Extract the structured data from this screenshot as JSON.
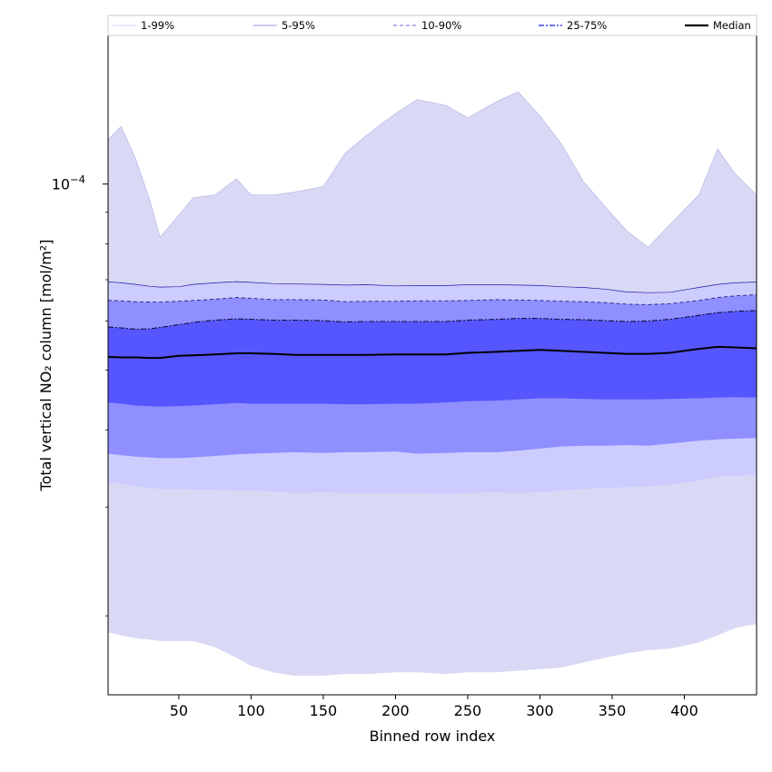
{
  "chart_data": {
    "type": "area",
    "title": "",
    "xlabel": "Binned row index",
    "ylabel": "Total vertical NO₂ column [mol/m²]",
    "xlim": [
      1,
      450
    ],
    "ylim": [
      1.49e-05,
      0.000174
    ],
    "yscale": "log",
    "grid": false,
    "legend_position": "top",
    "x_ticks": [
      50,
      100,
      150,
      200,
      250,
      300,
      350,
      400
    ],
    "y_tick_label": {
      "value": 0.0001,
      "base": "10",
      "exponent": "−4"
    },
    "x": [
      1,
      10,
      20,
      30,
      37,
      50,
      60,
      75,
      90,
      100,
      115,
      130,
      150,
      165,
      180,
      200,
      215,
      235,
      250,
      270,
      285,
      300,
      315,
      330,
      345,
      360,
      375,
      390,
      410,
      423,
      435,
      450
    ],
    "series": [
      {
        "name": "1-99%",
        "color": "#d9d9f5",
        "lower": [
          1.88e-05,
          1.86e-05,
          1.84e-05,
          1.83e-05,
          1.82e-05,
          1.82e-05,
          1.82e-05,
          1.78e-05,
          1.71e-05,
          1.66e-05,
          1.62e-05,
          1.6e-05,
          1.6e-05,
          1.61e-05,
          1.61e-05,
          1.62e-05,
          1.62e-05,
          1.61e-05,
          1.62e-05,
          1.62e-05,
          1.63e-05,
          1.64e-05,
          1.65e-05,
          1.68e-05,
          1.71e-05,
          1.74e-05,
          1.76e-05,
          1.77e-05,
          1.81e-05,
          1.86e-05,
          1.91e-05,
          1.94e-05
        ],
        "upper": [
          0.000118,
          0.000124,
          0.00011,
          9.4e-05,
          8.2e-05,
          8.9e-05,
          9.5e-05,
          9.6e-05,
          0.000102,
          9.6e-05,
          9.6e-05,
          9.7e-05,
          9.9e-05,
          0.000112,
          0.00012,
          0.00013,
          0.000137,
          0.000134,
          0.000128,
          0.000136,
          0.000141,
          0.000129,
          0.000116,
          0.000101,
          9.2e-05,
          8.4e-05,
          7.9e-05,
          8.6e-05,
          9.6e-05,
          0.000114,
          0.000104,
          9.6e-05
        ]
      },
      {
        "name": "5-95%",
        "color": "#ccccff",
        "lower": [
          3.29e-05,
          3.27e-05,
          3.24e-05,
          3.22e-05,
          3.21e-05,
          3.21e-05,
          3.2e-05,
          3.2e-05,
          3.19e-05,
          3.19e-05,
          3.18e-05,
          3.16e-05,
          3.17e-05,
          3.16e-05,
          3.16e-05,
          3.16e-05,
          3.16e-05,
          3.15e-05,
          3.16e-05,
          3.17e-05,
          3.16e-05,
          3.17e-05,
          3.19e-05,
          3.21e-05,
          3.22e-05,
          3.23e-05,
          3.24e-05,
          3.26e-05,
          3.31e-05,
          3.36e-05,
          3.37e-05,
          3.38e-05
        ],
        "upper": [
          6.95e-05,
          6.92e-05,
          6.88e-05,
          6.83e-05,
          6.81e-05,
          6.82e-05,
          6.88e-05,
          6.92e-05,
          6.95e-05,
          6.93e-05,
          6.9e-05,
          6.89e-05,
          6.88e-05,
          6.86e-05,
          6.87e-05,
          6.84e-05,
          6.85e-05,
          6.85e-05,
          6.87e-05,
          6.87e-05,
          6.86e-05,
          6.85e-05,
          6.82e-05,
          6.8e-05,
          6.76e-05,
          6.69e-05,
          6.67e-05,
          6.68e-05,
          6.8e-05,
          6.88e-05,
          6.92e-05,
          6.94e-05
        ]
      },
      {
        "name": "10-90%",
        "color": "#8f8fff",
        "lower": [
          3.66e-05,
          3.64e-05,
          3.62e-05,
          3.61e-05,
          3.6e-05,
          3.6e-05,
          3.61e-05,
          3.63e-05,
          3.65e-05,
          3.66e-05,
          3.67e-05,
          3.68e-05,
          3.67e-05,
          3.68e-05,
          3.68e-05,
          3.69e-05,
          3.66e-05,
          3.67e-05,
          3.68e-05,
          3.68e-05,
          3.7e-05,
          3.73e-05,
          3.76e-05,
          3.77e-05,
          3.77e-05,
          3.78e-05,
          3.77e-05,
          3.8e-05,
          3.84e-05,
          3.86e-05,
          3.87e-05,
          3.88e-05
        ],
        "upper": [
          6.48e-05,
          6.47e-05,
          6.45e-05,
          6.44e-05,
          6.44e-05,
          6.46e-05,
          6.48e-05,
          6.51e-05,
          6.55e-05,
          6.53e-05,
          6.5e-05,
          6.5e-05,
          6.49e-05,
          6.45e-05,
          6.46e-05,
          6.46e-05,
          6.47e-05,
          6.47e-05,
          6.48e-05,
          6.5e-05,
          6.49e-05,
          6.48e-05,
          6.46e-05,
          6.45e-05,
          6.43e-05,
          6.39e-05,
          6.38e-05,
          6.4e-05,
          6.48e-05,
          6.55e-05,
          6.59e-05,
          6.62e-05
        ]
      },
      {
        "name": "25-75%",
        "color": "#5656ff",
        "lower": [
          4.43e-05,
          4.41e-05,
          4.38e-05,
          4.37e-05,
          4.36e-05,
          4.37e-05,
          4.38e-05,
          4.4e-05,
          4.42e-05,
          4.41e-05,
          4.41e-05,
          4.41e-05,
          4.41e-05,
          4.4e-05,
          4.4e-05,
          4.41e-05,
          4.41e-05,
          4.43e-05,
          4.45e-05,
          4.46e-05,
          4.48e-05,
          4.5e-05,
          4.5e-05,
          4.49e-05,
          4.48e-05,
          4.48e-05,
          4.48e-05,
          4.49e-05,
          4.5e-05,
          4.51e-05,
          4.52e-05,
          4.51e-05
        ],
        "upper": [
          5.87e-05,
          5.85e-05,
          5.82e-05,
          5.83e-05,
          5.86e-05,
          5.92e-05,
          5.97e-05,
          6.02e-05,
          6.05e-05,
          6.04e-05,
          6.02e-05,
          6.02e-05,
          6.01e-05,
          5.98e-05,
          5.99e-05,
          5.99e-05,
          5.99e-05,
          5.99e-05,
          6.02e-05,
          6.04e-05,
          6.06e-05,
          6.06e-05,
          6.04e-05,
          6.03e-05,
          6.01e-05,
          5.99e-05,
          6e-05,
          6.04e-05,
          6.13e-05,
          6.19e-05,
          6.22e-05,
          6.24e-05
        ]
      },
      {
        "name": "Median",
        "color": "#000000",
        "values": [
          5.25e-05,
          5.24e-05,
          5.24e-05,
          5.23e-05,
          5.23e-05,
          5.27e-05,
          5.28e-05,
          5.3e-05,
          5.32e-05,
          5.32e-05,
          5.31e-05,
          5.29e-05,
          5.29e-05,
          5.29e-05,
          5.29e-05,
          5.3e-05,
          5.3e-05,
          5.3e-05,
          5.33e-05,
          5.35e-05,
          5.37e-05,
          5.39e-05,
          5.37e-05,
          5.35e-05,
          5.33e-05,
          5.31e-05,
          5.31e-05,
          5.33e-05,
          5.41e-05,
          5.45e-05,
          5.44e-05,
          5.42e-05
        ]
      }
    ]
  }
}
